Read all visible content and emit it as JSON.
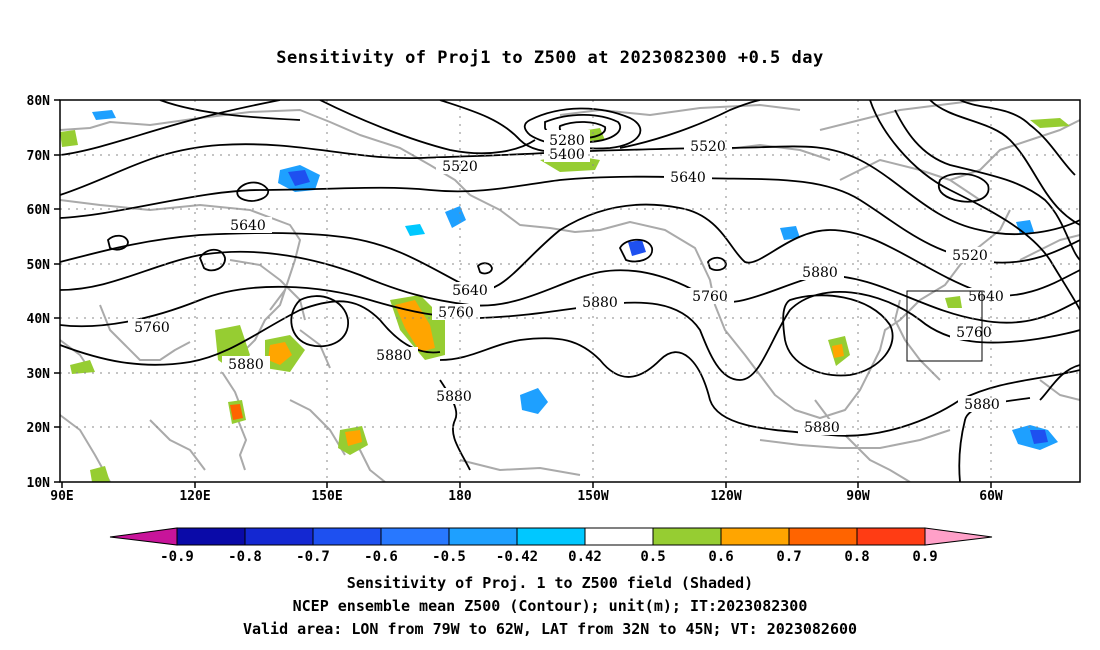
{
  "title": "Sensitivity of Proj1 to Z500 at 2023082300 +0.5 day",
  "axes": {
    "lat_labels": [
      "80N",
      "70N",
      "60N",
      "50N",
      "40N",
      "30N",
      "20N",
      "10N"
    ],
    "lon_labels": [
      "90E",
      "120E",
      "150E",
      "180",
      "150W",
      "120W",
      "90W",
      "60W"
    ]
  },
  "contour_labels": [
    "5280",
    "5400",
    "5520",
    "5520",
    "5520",
    "5640",
    "5640",
    "5640",
    "5640",
    "5760",
    "5760",
    "5760",
    "5760",
    "5880",
    "5880",
    "5880",
    "5880",
    "5880",
    "5880"
  ],
  "colorbar": {
    "tick_labels": [
      "-0.9",
      "-0.8",
      "-0.7",
      "-0.6",
      "-0.5",
      "-0.42",
      "0.42",
      "0.5",
      "0.6",
      "0.7",
      "0.8",
      "0.9"
    ],
    "colors": [
      "#0a0aa8",
      "#1428d2",
      "#1e50f0",
      "#2878ff",
      "#1ea0ff",
      "#00c8ff",
      "#ffffff",
      "#96cd32",
      "#ffa500",
      "#ff6400",
      "#ff3c14",
      "#ff0000"
    ],
    "low_extend_color": "#c8149a",
    "high_extend_color": "#ffa0c8"
  },
  "captions": [
    "Sensitivity of Proj. 1 to Z500 field (Shaded)",
    "NCEP ensemble mean Z500 (Contour); unit(m); IT:2023082300",
    "Valid area: LON from 79W to 62W, LAT from 32N to 45N; VT: 2023082600"
  ],
  "colors": {
    "contour": "#000000",
    "coastline": "#aaaaaa",
    "grid": "#888888"
  }
}
